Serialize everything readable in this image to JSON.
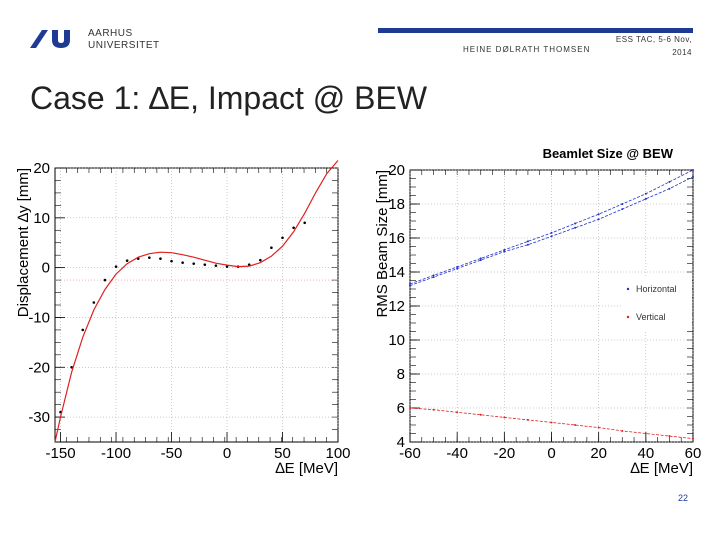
{
  "header": {
    "university_line1": "AARHUS",
    "university_line2": "UNIVERSITET",
    "author": "HEINE DØLRATH THOMSEN",
    "conference_line1": "ESS TAC, 5-6 Nov,",
    "conference_line2": "2014"
  },
  "slide": {
    "title": "Case 1: ∆E, Impact @ BEW",
    "number": "22"
  },
  "colors": {
    "accent": "#1f3a93",
    "red": "#e02020",
    "blue": "#2030d0"
  },
  "chart_data": [
    {
      "type": "scatter",
      "title": "",
      "xlabel": "∆E [MeV]",
      "ylabel": "Displacement ∆y [mm]",
      "xlim": [
        -155,
        100
      ],
      "ylim": [
        -35,
        20
      ],
      "xticks": [
        "-150",
        "-100",
        "-50",
        "0",
        "50",
        "100"
      ],
      "yticks": [
        "-30",
        "-20",
        "-10",
        "0",
        "10",
        "20"
      ],
      "series": [
        {
          "kind": "points",
          "color": "#000000",
          "x": [
            -150,
            -140,
            -130,
            -120,
            -110,
            -100,
            -90,
            -80,
            -70,
            -60,
            -50,
            -40,
            -30,
            -20,
            -10,
            0,
            10,
            20,
            30,
            40,
            50,
            60,
            70
          ],
          "y": [
            -29,
            -20,
            -12.5,
            -7,
            -2.5,
            0.2,
            1.4,
            1.8,
            2,
            1.8,
            1.3,
            1,
            0.8,
            0.6,
            0.4,
            0.2,
            0.2,
            0.6,
            1.5,
            4,
            6,
            8,
            9
          ]
        },
        {
          "kind": "fit",
          "color": "#e02020",
          "x": [
            -155,
            -150,
            -140,
            -130,
            -120,
            -110,
            -100,
            -90,
            -80,
            -70,
            -60,
            -50,
            -40,
            -30,
            -20,
            -10,
            0,
            10,
            20,
            30,
            40,
            50,
            60,
            70,
            80,
            90,
            100
          ],
          "y": [
            -35,
            -30,
            -21,
            -14,
            -8.5,
            -4.4,
            -1.3,
            0.8,
            2.1,
            2.8,
            3.1,
            3,
            2.6,
            2.1,
            1.5,
            0.9,
            0.5,
            0.2,
            0.3,
            1,
            2.3,
            4.3,
            7.2,
            10.9,
            15.1,
            18.9,
            21.5
          ]
        }
      ]
    },
    {
      "type": "line",
      "title": "Beamlet Size @ BEW",
      "xlabel": "∆E [MeV]",
      "ylabel": "RMS Beam Size [mm]",
      "xlim": [
        -60,
        60
      ],
      "ylim": [
        4,
        20
      ],
      "xticks": [
        "-60",
        "-40",
        "-20",
        "0",
        "20",
        "40",
        "60"
      ],
      "yticks": [
        "4",
        "6",
        "8",
        "10",
        "12",
        "14",
        "16",
        "18",
        "20"
      ],
      "legend_position": "right",
      "series": [
        {
          "name": "Horizontal",
          "color": "#2030d0",
          "x": [
            -60,
            -50,
            -40,
            -30,
            -20,
            -10,
            0,
            10,
            20,
            30,
            40,
            50,
            60
          ],
          "y": [
            13.2,
            13.7,
            14.2,
            14.7,
            15.2,
            15.6,
            16.1,
            16.6,
            17.1,
            17.7,
            18.3,
            18.9,
            19.6
          ]
        },
        {
          "name": "Vertical",
          "color": "#e02020",
          "x": [
            -60,
            -50,
            -40,
            -30,
            -20,
            -10,
            0,
            10,
            20,
            30,
            40,
            50,
            60
          ],
          "y": [
            6,
            5.9,
            5.75,
            5.6,
            5.45,
            5.3,
            5.15,
            5.0,
            4.85,
            4.65,
            4.5,
            4.35,
            4.2
          ]
        },
        {
          "name": "",
          "color": "#2030d0",
          "x": [
            -60,
            -50,
            -40,
            -30,
            -20,
            -10,
            0,
            10,
            20,
            30,
            40,
            50,
            60
          ],
          "y": [
            13.3,
            13.8,
            14.3,
            14.8,
            15.3,
            15.8,
            16.3,
            16.85,
            17.4,
            18.0,
            18.6,
            19.3,
            20.0
          ]
        }
      ]
    }
  ]
}
